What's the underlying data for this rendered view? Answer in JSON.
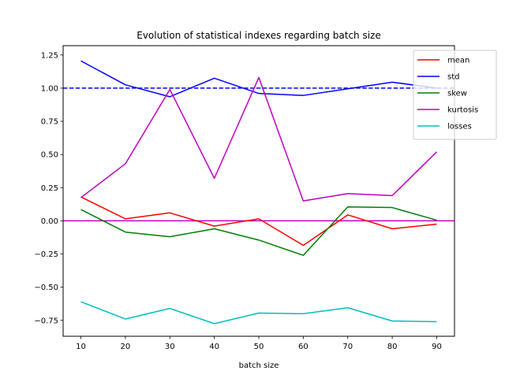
{
  "chart_data": {
    "type": "line",
    "title": "Evolution of statistical indexes regarding batch size",
    "xlabel": "batch size",
    "ylabel": "",
    "x": [
      10,
      20,
      30,
      40,
      50,
      60,
      70,
      80,
      90
    ],
    "xlim": [
      6,
      94
    ],
    "ylim": [
      -0.87,
      1.32
    ],
    "x_ticks": [
      10,
      20,
      30,
      40,
      50,
      60,
      70,
      80,
      90
    ],
    "y_ticks": [
      -0.75,
      -0.5,
      -0.25,
      0.0,
      0.25,
      0.5,
      0.75,
      1.0,
      1.25
    ],
    "series": [
      {
        "name": "mean",
        "color": "#ff0000",
        "values": [
          0.18,
          0.015,
          0.06,
          -0.04,
          0.015,
          -0.185,
          0.045,
          -0.06,
          -0.025
        ]
      },
      {
        "name": "std",
        "color": "#0000ff",
        "values": [
          1.205,
          1.025,
          0.935,
          1.075,
          0.96,
          0.945,
          0.995,
          1.045,
          1.0
        ]
      },
      {
        "name": "skew",
        "color": "#008000",
        "values": [
          0.085,
          -0.085,
          -0.12,
          -0.06,
          -0.145,
          -0.26,
          0.105,
          0.1,
          0.005
        ]
      },
      {
        "name": "kurtosis",
        "color": "#bf00bf",
        "values": [
          0.175,
          0.43,
          0.99,
          0.32,
          1.08,
          0.15,
          0.205,
          0.19,
          0.52
        ]
      },
      {
        "name": "losses",
        "color": "#00bfbf",
        "values": [
          -0.61,
          -0.74,
          -0.66,
          -0.775,
          -0.695,
          -0.7,
          -0.655,
          -0.755,
          -0.76
        ]
      }
    ],
    "reference_lines": [
      {
        "y": 1.0,
        "color": "#0000ff",
        "style": "dashed"
      },
      {
        "y": 0.0,
        "color": "#bf00bf",
        "style": "solid"
      }
    ],
    "grid": false,
    "legend_position": "top-right"
  }
}
